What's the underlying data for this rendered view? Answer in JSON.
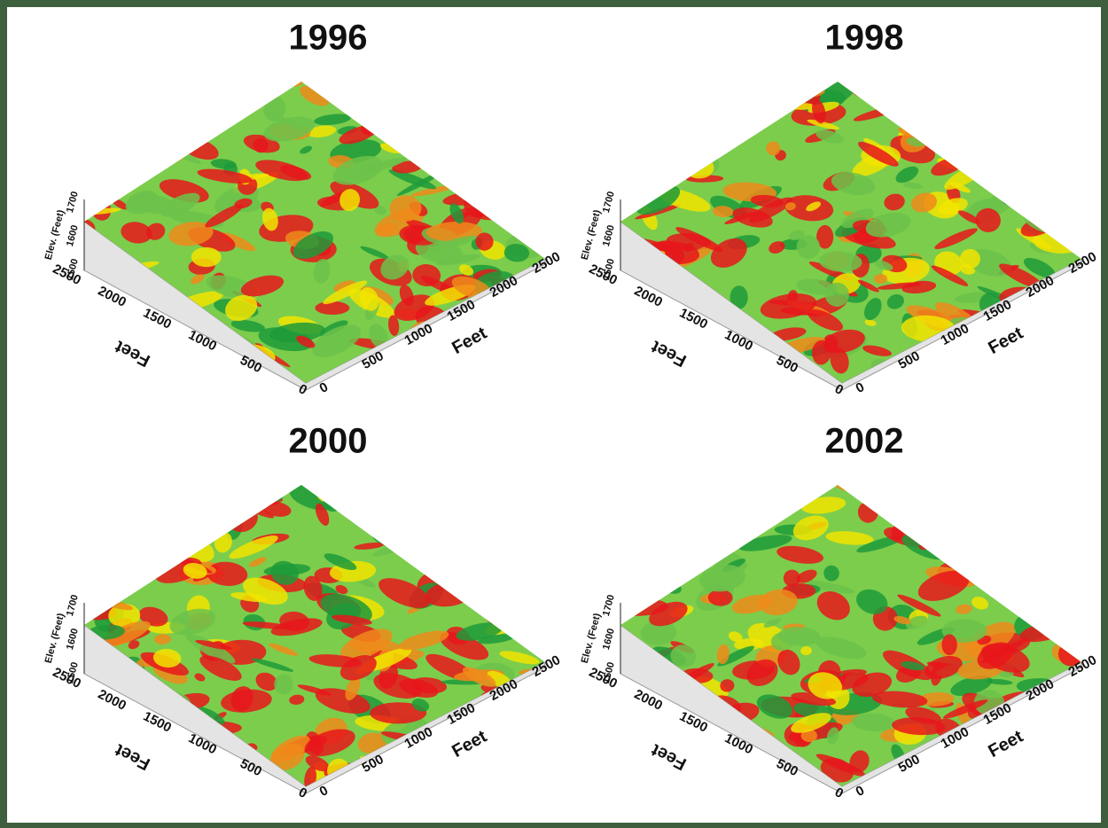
{
  "panels": [
    {
      "title": "1996",
      "z_label": "Elev. (Feet)",
      "z_ticks": [
        1700,
        1600,
        1500
      ],
      "y_label": "Feet",
      "y_ticks": [
        2500,
        2000,
        1500,
        1000,
        500,
        0
      ],
      "x_label": "Feet",
      "x_ticks": [
        0,
        500,
        1000,
        1500,
        2000,
        2500
      ]
    },
    {
      "title": "1998",
      "z_label": "Elev. (Feet)",
      "z_ticks": [
        1700,
        1600,
        1500
      ],
      "y_label": "Feet",
      "y_ticks": [
        2500,
        2000,
        1500,
        1000,
        500,
        0
      ],
      "x_label": "Feet",
      "x_ticks": [
        0,
        500,
        1000,
        1500,
        2000,
        2500
      ]
    },
    {
      "title": "2000",
      "z_label": "Elev. (Feet)",
      "z_ticks": [
        1700,
        1600,
        1500
      ],
      "y_label": "Feet",
      "y_ticks": [
        2500,
        2000,
        1500,
        1000,
        500,
        0
      ],
      "x_label": "Feet",
      "x_ticks": [
        0,
        500,
        1000,
        1500,
        2000,
        2500
      ]
    },
    {
      "title": "2002",
      "z_label": "Elev. (Feet)",
      "z_ticks": [
        1700,
        1600,
        1500
      ],
      "y_label": "Feet",
      "y_ticks": [
        2500,
        2000,
        1500,
        1000,
        500,
        0
      ],
      "x_label": "Feet",
      "x_ticks": [
        0,
        500,
        1000,
        1500,
        2000,
        2500
      ]
    }
  ]
}
